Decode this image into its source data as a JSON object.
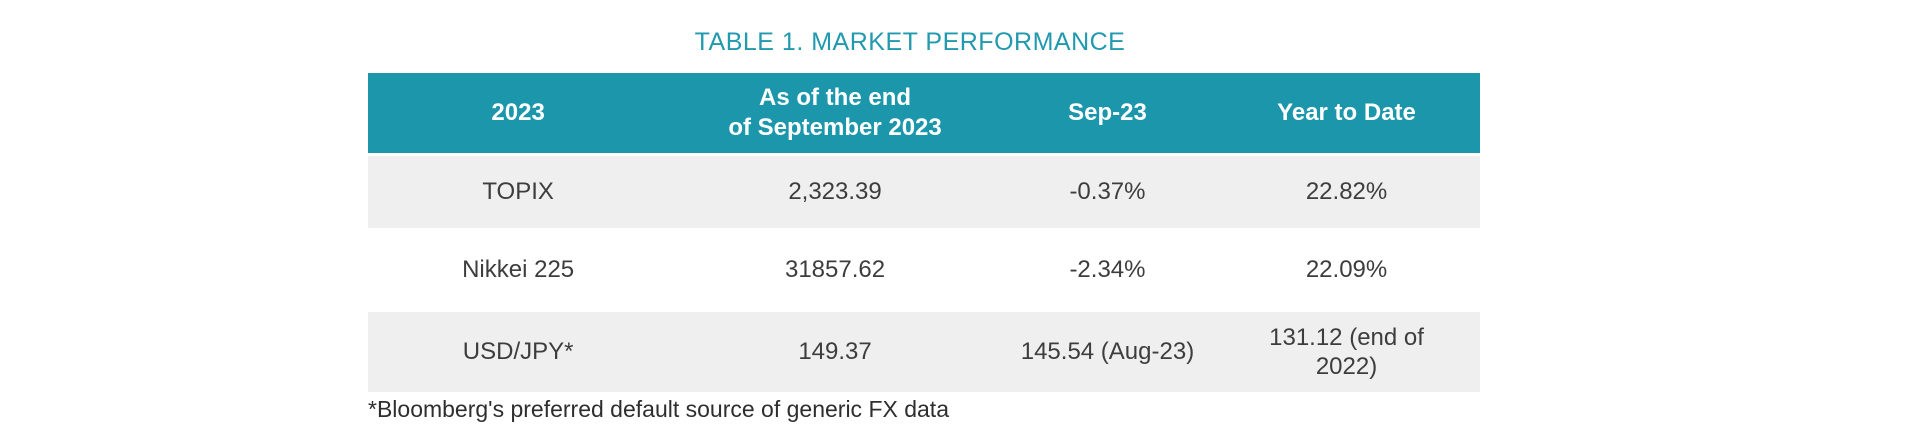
{
  "title": "TABLE 1. MARKET PERFORMANCE",
  "table": {
    "header": [
      "2023",
      "As of the end\nof September 2023",
      "Sep-23",
      "Year to Date"
    ],
    "rows": [
      [
        "TOPIX",
        "2,323.39",
        "-0.37%",
        "22.82%"
      ],
      [
        "Nikkei 225",
        "31857.62",
        "-2.34%",
        "22.09%"
      ],
      [
        "USD/JPY*",
        "149.37",
        "145.54 (Aug-23)",
        "131.12 (end of\n2022)"
      ]
    ]
  },
  "footnote": "*Bloomberg's preferred default source of generic FX data",
  "colors": {
    "header_bg": "#1b96ab",
    "header_text": "#ffffff",
    "title_text": "#2199ae",
    "row_alt_bg": "#f0efef",
    "row_bg": "#ffffff",
    "body_text": "#3d3d3d"
  }
}
